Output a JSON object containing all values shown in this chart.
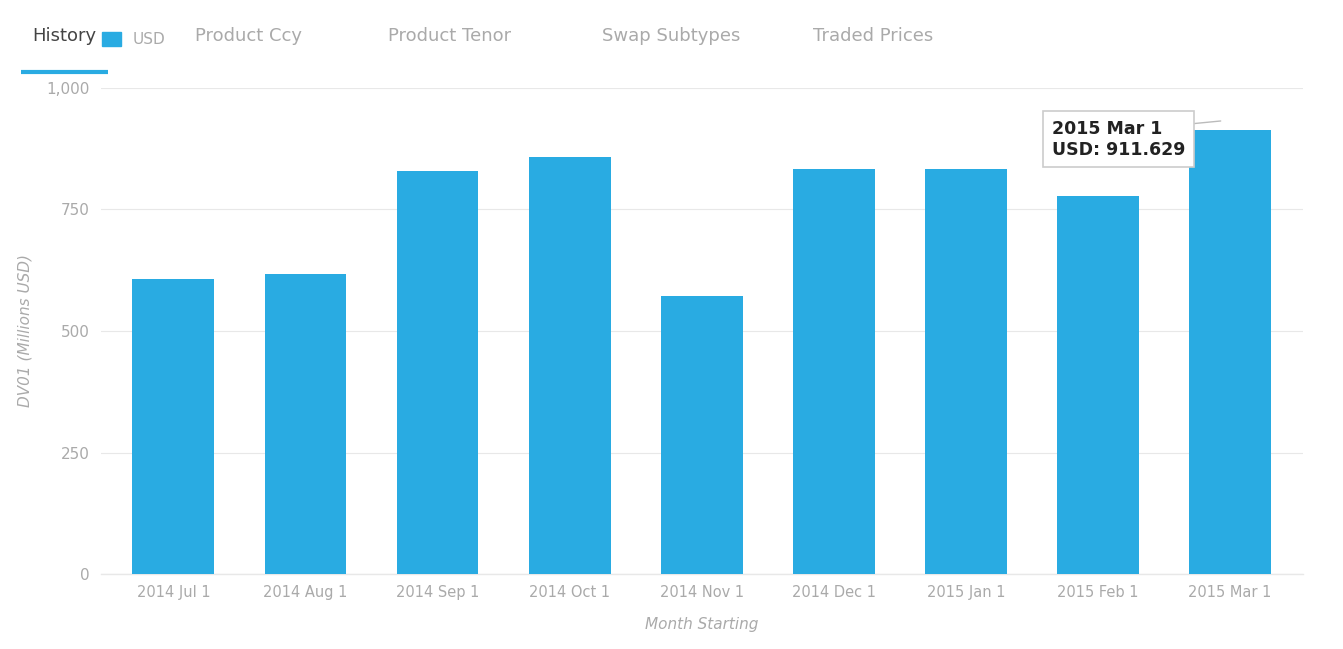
{
  "categories": [
    "2014 Jul 1",
    "2014 Aug 1",
    "2014 Sep 1",
    "2014 Oct 1",
    "2014 Nov 1",
    "2014 Dec 1",
    "2015 Jan 1",
    "2015 Feb 1",
    "2015 Mar 1"
  ],
  "values": [
    607,
    618,
    828,
    858,
    572,
    832,
    832,
    778,
    912
  ],
  "bar_color": "#29ABE2",
  "background_color": "#FFFFFF",
  "ylabel": "DV01 (Millions USD)",
  "xlabel": "Month Starting",
  "ylim": [
    0,
    1000
  ],
  "yticks": [
    0,
    250,
    500,
    750,
    1000
  ],
  "ytick_labels": [
    "0",
    "250",
    "500",
    "750",
    "1,000"
  ],
  "legend_label": "USD",
  "tooltip_line1": "2015 Mar 1",
  "tooltip_line2": "USD: 911.629",
  "nav_items": [
    "History",
    "Product Ccy",
    "Product Tenor",
    "Swap Subtypes",
    "Traded Prices"
  ],
  "nav_active": "History",
  "nav_active_color": "#29ABE2",
  "nav_bg_color": "#F7F7F7",
  "nav_text_color": "#AAAAAA",
  "nav_active_text_color": "#444444",
  "axis_text_color": "#AAAAAA",
  "axis_label_color": "#AAAAAA",
  "grid_color": "#E8E8E8",
  "nav_underline_color": "#29ABE2",
  "nav_separator_color": "#DDDDDD"
}
